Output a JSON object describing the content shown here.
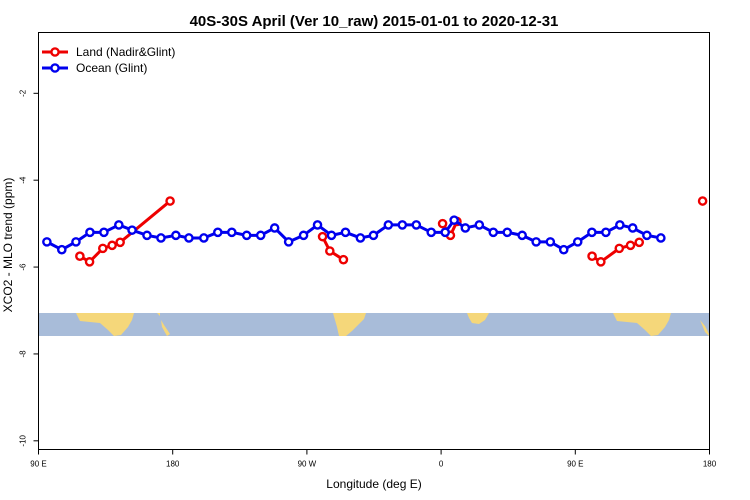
{
  "chart_data": {
    "type": "line",
    "title": "40S-30S April (Ver 10_raw)   2015-01-01 to 2020-12-31",
    "xlabel": "Longitude (deg E)",
    "ylabel": "XCO2 - MLO trend (ppm)",
    "xlim": [
      90,
      450
    ],
    "ylim": [
      -10.2,
      -0.6
    ],
    "x_ticks": [
      {
        "value": 90,
        "label": "90 E"
      },
      {
        "value": 162,
        "label": "180"
      },
      {
        "value": 234,
        "label": "90 W"
      },
      {
        "value": 306,
        "label": "0"
      },
      {
        "value": 378,
        "label": "90 E"
      },
      {
        "value": 450,
        "label": "180"
      }
    ],
    "y_ticks": [
      {
        "value": -2,
        "label": "-2"
      },
      {
        "value": -4,
        "label": "-4"
      },
      {
        "value": -6,
        "label": "-6"
      },
      {
        "value": -8,
        "label": "-8"
      },
      {
        "value": -10,
        "label": "-10"
      }
    ],
    "legend_position": "top-left",
    "series": [
      {
        "name": "Land (Nadir&Glint)",
        "color": "#ee0000",
        "segments": [
          [
            [
              112.2,
              -5.75
            ],
            [
              117.4,
              -5.88
            ],
            [
              124.5,
              -5.57
            ],
            [
              129.5,
              -5.5
            ],
            [
              133.8,
              -5.43
            ],
            [
              160.6,
              -4.48
            ]
          ],
          [
            [
              242.4,
              -5.3
            ],
            [
              246.3,
              -5.63
            ],
            [
              253.6,
              -5.83
            ]
          ],
          [
            [
              306.8,
              -5.0
            ],
            [
              311.0,
              -5.27
            ],
            [
              314.5,
              -4.95
            ]
          ],
          [
            [
              387.0,
              -5.75
            ],
            [
              391.7,
              -5.88
            ],
            [
              401.6,
              -5.57
            ],
            [
              407.6,
              -5.5
            ],
            [
              412.3,
              -5.43
            ]
          ],
          [
            [
              446.3,
              -4.48
            ]
          ]
        ]
      },
      {
        "name": "Ocean (Glint)",
        "color": "#0000ee",
        "segments": [
          [
            [
              94.5,
              -5.42
            ],
            [
              102.5,
              -5.6
            ],
            [
              110.1,
              -5.42
            ],
            [
              117.6,
              -5.2
            ],
            [
              125.1,
              -5.2
            ],
            [
              133.1,
              -5.03
            ],
            [
              140.2,
              -5.15
            ],
            [
              148.2,
              -5.27
            ],
            [
              155.7,
              -5.33
            ],
            [
              163.7,
              -5.27
            ],
            [
              170.7,
              -5.33
            ],
            [
              178.7,
              -5.33
            ],
            [
              186.2,
              -5.2
            ],
            [
              193.7,
              -5.2
            ],
            [
              201.7,
              -5.27
            ],
            [
              209.2,
              -5.27
            ],
            [
              216.7,
              -5.1
            ],
            [
              224.2,
              -5.42
            ],
            [
              232.2,
              -5.27
            ],
            [
              239.7,
              -5.03
            ],
            [
              247.2,
              -5.27
            ],
            [
              254.7,
              -5.2
            ],
            [
              262.7,
              -5.33
            ],
            [
              269.7,
              -5.27
            ],
            [
              277.7,
              -5.03
            ],
            [
              285.2,
              -5.03
            ],
            [
              292.7,
              -5.03
            ],
            [
              300.7,
              -5.2
            ],
            [
              308.2,
              -5.2
            ],
            [
              313.0,
              -4.92
            ],
            [
              319.0,
              -5.1
            ],
            [
              326.5,
              -5.03
            ],
            [
              334.0,
              -5.2
            ],
            [
              341.5,
              -5.2
            ],
            [
              349.5,
              -5.27
            ],
            [
              357.0,
              -5.42
            ],
            [
              364.6,
              -5.42
            ],
            [
              371.8,
              -5.6
            ],
            [
              379.3,
              -5.42
            ],
            [
              386.9,
              -5.2
            ],
            [
              394.4,
              -5.2
            ],
            [
              401.9,
              -5.03
            ],
            [
              408.8,
              -5.1
            ],
            [
              416.4,
              -5.27
            ],
            [
              423.9,
              -5.33
            ]
          ]
        ]
      }
    ]
  },
  "map_strip": {
    "ocean_color": "#a8bcd9",
    "land_color": "#f5d77a"
  }
}
